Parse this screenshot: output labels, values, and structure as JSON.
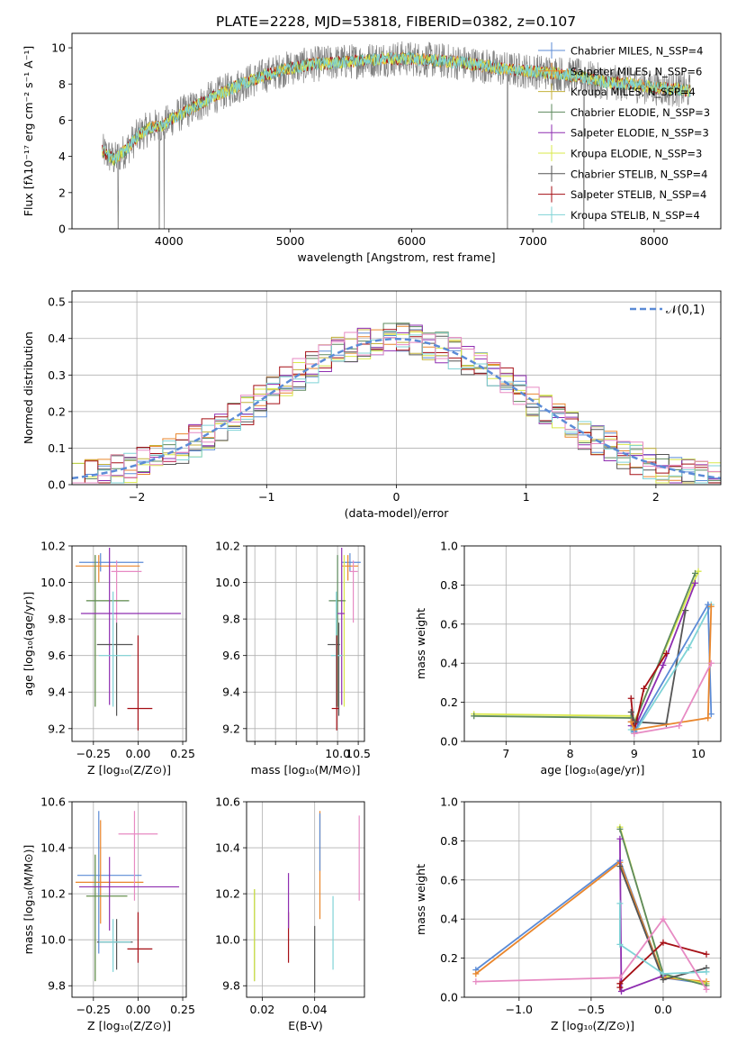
{
  "figure": {
    "title": "PLATE=2228, MJD=53818, FIBERID=0382, z=0.107"
  },
  "colors": {
    "CM": "#5b8bd6",
    "SM": "#e9862c",
    "KM": "#c4b23c",
    "CE": "#5e8a5e",
    "SE": "#8e2db0",
    "KE": "#d9e84a",
    "CS": "#555555",
    "SS": "#a50f15",
    "KS": "#7fd3d6",
    "pink": "#e78ac3",
    "gray": "#808080",
    "cyan": "#7fd3d6",
    "grid": "#b0b0b0"
  },
  "chart_data": [
    {
      "id": "spectrum",
      "type": "line",
      "title": "PLATE=2228, MJD=53818, FIBERID=0382, z=0.107",
      "xlabel": "wavelength [Angstrom, rest frame]",
      "ylabel": "Flux [fλ10⁻¹⁷ erg cm⁻² s⁻¹ A⁻¹]",
      "xlim": [
        3200,
        8550
      ],
      "ylim": [
        0,
        10.8
      ],
      "xticks": [
        4000,
        5000,
        6000,
        7000,
        8000
      ],
      "yticks": [
        0,
        2,
        4,
        6,
        8,
        10
      ],
      "grid": false,
      "legend_position": "right",
      "legend": [
        {
          "label": "Chabrier MILES, N_SSP=4",
          "color": "#5b8bd6"
        },
        {
          "label": "Salpeter MILES, N_SSP=6",
          "color": "#e9862c"
        },
        {
          "label": "Kroupa MILES, N_SSP=4",
          "color": "#c4b23c"
        },
        {
          "label": "Chabrier ELODIE, N_SSP=3",
          "color": "#5e8a5e"
        },
        {
          "label": "Salpeter ELODIE, N_SSP=3",
          "color": "#8e2db0"
        },
        {
          "label": "Kroupa ELODIE, N_SSP=3",
          "color": "#d9e84a"
        },
        {
          "label": "Chabrier STELIB, N_SSP=4",
          "color": "#555555"
        },
        {
          "label": "Salpeter STELIB, N_SSP=4",
          "color": "#a50f15"
        },
        {
          "label": "Kroupa STELIB, N_SSP=4",
          "color": "#7fd3d6"
        }
      ],
      "continuum": [
        [
          3450,
          4.3
        ],
        [
          3550,
          3.8
        ],
        [
          3650,
          4.4
        ],
        [
          3750,
          5.2
        ],
        [
          3850,
          5.6
        ],
        [
          3950,
          5.7
        ],
        [
          4050,
          6.2
        ],
        [
          4200,
          6.7
        ],
        [
          4400,
          7.4
        ],
        [
          4600,
          8.0
        ],
        [
          4800,
          8.5
        ],
        [
          5000,
          8.9
        ],
        [
          5200,
          9.1
        ],
        [
          5400,
          9.2
        ],
        [
          5600,
          9.3
        ],
        [
          5800,
          9.4
        ],
        [
          6000,
          9.4
        ],
        [
          6200,
          9.3
        ],
        [
          6400,
          9.2
        ],
        [
          6600,
          9.0
        ],
        [
          6800,
          8.8
        ],
        [
          7000,
          8.7
        ],
        [
          7200,
          8.6
        ],
        [
          7400,
          8.4
        ],
        [
          7600,
          8.1
        ],
        [
          7800,
          8.0
        ],
        [
          8000,
          7.8
        ],
        [
          8200,
          7.7
        ],
        [
          8300,
          7.6
        ]
      ],
      "noise_amplitude": 1.0,
      "dips": [
        [
          3580,
          0
        ],
        [
          3920,
          0
        ],
        [
          3960,
          0
        ],
        [
          6790,
          0
        ],
        [
          7420,
          0
        ]
      ]
    },
    {
      "id": "residuals",
      "type": "step",
      "xlabel": "(data-model)/error",
      "ylabel": "Normed distribution",
      "xlim": [
        -2.5,
        2.5
      ],
      "ylim": [
        0,
        0.53
      ],
      "xticks": [
        -2,
        -1,
        0,
        1,
        2
      ],
      "yticks": [
        0.0,
        0.1,
        0.2,
        0.3,
        0.4,
        0.5
      ],
      "grid": true,
      "legend": [
        {
          "label": "𝒩(0,1)",
          "color": "#5b8bd6",
          "style": "dashed"
        }
      ],
      "bin_width": 0.1,
      "bin_start": -2.5
    },
    {
      "id": "age_vs_Z",
      "type": "errorbar",
      "xlabel": "Z [log₁₀(Z/Z⊙)]",
      "ylabel": "age  [log₁₀(age/yr)]",
      "xlim": [
        -0.37,
        0.27
      ],
      "ylim": [
        9.13,
        10.2
      ],
      "xticks": [
        -0.25,
        0.0,
        0.25
      ],
      "xticklabels": [
        "−0.25",
        "0.00",
        "0.25"
      ],
      "yticks": [
        9.2,
        9.4,
        9.6,
        9.8,
        10.0,
        10.2
      ],
      "grid": true,
      "points": [
        {
          "x": -0.21,
          "y": 10.11,
          "xerr": [
            0.12,
            0.24
          ],
          "yerr": [
            0.05,
            0.05
          ],
          "c": "CM"
        },
        {
          "x": -0.22,
          "y": 10.09,
          "xerr": [
            0.13,
            0.23
          ],
          "yerr": [
            0.09,
            0.06
          ],
          "c": "SM"
        },
        {
          "x": -0.12,
          "y": 10.06,
          "xerr": [
            0.03,
            0.14
          ],
          "yerr": [
            0.28,
            0.06
          ],
          "c": "pink"
        },
        {
          "x": -0.24,
          "y": 9.9,
          "xerr": [
            0.05,
            0.19
          ],
          "yerr": [
            0.58,
            0.25
          ],
          "c": "KE"
        },
        {
          "x": -0.24,
          "y": 9.9,
          "xerr": [
            0.05,
            0.19
          ],
          "yerr": [
            0.58,
            0.25
          ],
          "c": "CE"
        },
        {
          "x": -0.16,
          "y": 9.83,
          "xerr": [
            0.16,
            0.4
          ],
          "yerr": [
            0.5,
            0.36
          ],
          "c": "SE"
        },
        {
          "x": -0.12,
          "y": 9.66,
          "xerr": [
            0.11,
            0.09
          ],
          "yerr": [
            0.39,
            0.12
          ],
          "c": "CS"
        },
        {
          "x": -0.14,
          "y": 9.6,
          "xerr": [
            0.08,
            0.1
          ],
          "yerr": [
            0.28,
            0.35
          ],
          "c": "KS"
        },
        {
          "x": 0.0,
          "y": 9.31,
          "xerr": [
            0.06,
            0.08
          ],
          "yerr": [
            0.12,
            0.4
          ],
          "c": "SS"
        }
      ]
    },
    {
      "id": "age_vs_mass",
      "type": "errorbar",
      "xlabel": "mass [log₁₀(M/M⊙)]",
      "ylabel": "",
      "xlim": [
        7.8,
        10.65
      ],
      "ylim": [
        9.13,
        10.2
      ],
      "xticks": [
        8.0,
        8.5,
        9.0,
        9.5,
        10.0,
        10.5
      ],
      "xticklabels": [
        "",
        "",
        "",
        "",
        "10.0",
        "10.5"
      ],
      "yticks": [
        9.2,
        9.4,
        9.6,
        9.8,
        10.0,
        10.2
      ],
      "grid": true,
      "points": [
        {
          "x": 10.3,
          "y": 10.11,
          "xerr": [
            0.19,
            0.26
          ],
          "yerr": [
            0.05,
            0.05
          ],
          "c": "CM"
        },
        {
          "x": 10.25,
          "y": 10.09,
          "xerr": [
            0.14,
            0.25
          ],
          "yerr": [
            0.08,
            0.06
          ],
          "c": "SM"
        },
        {
          "x": 10.38,
          "y": 10.06,
          "xerr": [
            0.09,
            0.11
          ],
          "yerr": [
            0.28,
            0.06
          ],
          "c": "pink"
        },
        {
          "x": 10.16,
          "y": 9.9,
          "xerr": [
            0.15,
            0.04
          ],
          "yerr": [
            0.58,
            0.25
          ],
          "c": "KE"
        },
        {
          "x": 10.0,
          "y": 9.9,
          "xerr": [
            0.21,
            0.19
          ],
          "yerr": [
            0.58,
            0.25
          ],
          "c": "CE"
        },
        {
          "x": 10.1,
          "y": 9.83,
          "xerr": [
            0.1,
            0.07
          ],
          "yerr": [
            0.5,
            0.36
          ],
          "c": "SE"
        },
        {
          "x": 10.03,
          "y": 9.66,
          "xerr": [
            0.27,
            0.03
          ],
          "yerr": [
            0.39,
            0.12
          ],
          "c": "CS"
        },
        {
          "x": 9.97,
          "y": 9.6,
          "xerr": [
            0.13,
            0.14
          ],
          "yerr": [
            0.28,
            0.35
          ],
          "c": "KS"
        },
        {
          "x": 9.98,
          "y": 9.31,
          "xerr": [
            0.12,
            0.05
          ],
          "yerr": [
            0.12,
            0.4
          ],
          "c": "SS"
        }
      ]
    },
    {
      "id": "weight_vs_age",
      "type": "line",
      "xlabel": "age  [log₁₀(age/yr)]",
      "ylabel": "mass weight",
      "xlim": [
        6.35,
        10.35
      ],
      "ylim": [
        0,
        1.0
      ],
      "xticks": [
        7,
        8,
        9,
        10
      ],
      "yticks": [
        0.0,
        0.2,
        0.4,
        0.6,
        0.8,
        1.0
      ],
      "grid": true,
      "series": [
        {
          "c": "KE",
          "x": [
            6.5,
            8.95,
            9.0,
            10.0
          ],
          "y": [
            0.14,
            0.13,
            0.1,
            0.87
          ]
        },
        {
          "c": "CE",
          "x": [
            6.5,
            8.95,
            9.0,
            9.95
          ],
          "y": [
            0.13,
            0.12,
            0.09,
            0.86
          ]
        },
        {
          "c": "SE",
          "x": [
            8.95,
            9.05,
            9.45,
            9.95
          ],
          "y": [
            0.08,
            0.1,
            0.39,
            0.81
          ]
        },
        {
          "c": "SS",
          "x": [
            8.95,
            9.0,
            9.15,
            9.5
          ],
          "y": [
            0.22,
            0.05,
            0.27,
            0.45
          ]
        },
        {
          "c": "CS",
          "x": [
            8.95,
            9.0,
            9.5,
            9.8
          ],
          "y": [
            0.15,
            0.1,
            0.09,
            0.67
          ]
        },
        {
          "c": "KS",
          "x": [
            8.95,
            9.0,
            9.85,
            10.2
          ],
          "y": [
            0.06,
            0.04,
            0.48,
            0.7
          ]
        },
        {
          "c": "CM",
          "x": [
            8.95,
            9.0,
            10.15,
            10.2
          ],
          "y": [
            0.1,
            0.05,
            0.7,
            0.14
          ]
        },
        {
          "c": "SM",
          "x": [
            8.95,
            9.0,
            10.15,
            10.2
          ],
          "y": [
            0.1,
            0.06,
            0.12,
            0.69
          ]
        },
        {
          "c": "pink",
          "x": [
            9.0,
            9.7,
            10.2
          ],
          "y": [
            0.04,
            0.08,
            0.4
          ]
        }
      ]
    },
    {
      "id": "mass_vs_Z",
      "type": "errorbar",
      "xlabel": "Z [log₁₀(Z/Z⊙)]",
      "ylabel": "mass [log₁₀(M/M⊙)]",
      "xlim": [
        -0.37,
        0.27
      ],
      "ylim": [
        9.75,
        10.6
      ],
      "xticks": [
        -0.25,
        0.0,
        0.25
      ],
      "xticklabels": [
        "−0.25",
        "0.00",
        "0.25"
      ],
      "yticks": [
        9.8,
        10.0,
        10.2,
        10.4,
        10.6
      ],
      "grid": true,
      "points": [
        {
          "x": -0.22,
          "y": 10.28,
          "xerr": [
            0.12,
            0.24
          ],
          "yerr": [
            0.34,
            0.28
          ],
          "c": "CM"
        },
        {
          "x": -0.21,
          "y": 10.25,
          "xerr": [
            0.14,
            0.24
          ],
          "yerr": [
            0.18,
            0.27
          ],
          "c": "SM"
        },
        {
          "x": -0.02,
          "y": 10.46,
          "xerr": [
            0.09,
            0.13
          ],
          "yerr": [
            0.29,
            0.1
          ],
          "c": "pink"
        },
        {
          "x": -0.24,
          "y": 10.19,
          "xerr": [
            0.05,
            0.18
          ],
          "yerr": [
            0.37,
            0.18
          ],
          "c": "KE"
        },
        {
          "x": -0.24,
          "y": 10.19,
          "xerr": [
            0.05,
            0.18
          ],
          "yerr": [
            0.37,
            0.18
          ],
          "c": "CE"
        },
        {
          "x": -0.16,
          "y": 10.23,
          "xerr": [
            0.17,
            0.39
          ],
          "yerr": [
            0.19,
            0.13
          ],
          "c": "SE"
        },
        {
          "x": -0.12,
          "y": 9.99,
          "xerr": [
            0.11,
            0.09
          ],
          "yerr": [
            0.12,
            0.1
          ],
          "c": "CS"
        },
        {
          "x": -0.14,
          "y": 9.99,
          "xerr": [
            0.08,
            0.1
          ],
          "yerr": [
            0.13,
            0.1
          ],
          "c": "KS"
        },
        {
          "x": 0.0,
          "y": 9.96,
          "xerr": [
            0.06,
            0.08
          ],
          "yerr": [
            0.06,
            0.16
          ],
          "c": "SS"
        }
      ]
    },
    {
      "id": "mass_vs_ebv",
      "type": "errorbar",
      "xlabel": "E(B-V)",
      "ylabel": "",
      "xlim": [
        0.014,
        0.059
      ],
      "ylim": [
        9.75,
        10.6
      ],
      "xticks": [
        0.02,
        0.04
      ],
      "yticks": [
        9.8,
        10.0,
        10.2,
        10.4,
        10.6
      ],
      "grid": true,
      "points": [
        {
          "x": 0.017,
          "y": 10.02,
          "yerr": [
            0.2,
            0.2
          ],
          "c": "CE"
        },
        {
          "x": 0.017,
          "y": 10.02,
          "yerr": [
            0.2,
            0.2
          ],
          "c": "KE"
        },
        {
          "x": 0.03,
          "y": 10.01,
          "yerr": [
            0.11,
            0.11
          ],
          "c": "SS"
        },
        {
          "x": 0.03,
          "y": 10.17,
          "yerr": [
            0.12,
            0.12
          ],
          "c": "SE"
        },
        {
          "x": 0.04,
          "y": 9.95,
          "yerr": [
            0.18,
            0.11
          ],
          "c": "CS"
        },
        {
          "x": 0.042,
          "y": 10.35,
          "yerr": [
            0.26,
            0.21
          ],
          "c": "SM"
        },
        {
          "x": 0.042,
          "y": 10.42,
          "yerr": [
            0.12,
            0.13
          ],
          "c": "CM"
        },
        {
          "x": 0.047,
          "y": 10.03,
          "yerr": [
            0.16,
            0.16
          ],
          "c": "KS"
        },
        {
          "x": 0.057,
          "y": 10.35,
          "yerr": [
            0.18,
            0.19
          ],
          "c": "pink"
        }
      ]
    },
    {
      "id": "weight_vs_Z",
      "type": "line",
      "xlabel": "Z [log₁₀(Z/Z⊙)]",
      "ylabel": "mass weight",
      "xlim": [
        -1.38,
        0.4
      ],
      "ylim": [
        0,
        1.0
      ],
      "xticks": [
        -1.0,
        -0.5,
        0.0
      ],
      "xticklabels": [
        "−1.0",
        "−0.5",
        "0.0"
      ],
      "yticks": [
        0.0,
        0.2,
        0.4,
        0.6,
        0.8,
        1.0
      ],
      "grid": true,
      "series": [
        {
          "c": "CM",
          "x": [
            -1.3,
            -0.3,
            0.0,
            0.3
          ],
          "y": [
            0.14,
            0.7,
            0.1,
            0.07
          ]
        },
        {
          "c": "SM",
          "x": [
            -1.3,
            -0.3,
            0.0,
            0.3
          ],
          "y": [
            0.12,
            0.69,
            0.1,
            0.08
          ]
        },
        {
          "c": "KE",
          "x": [
            -0.3,
            0.0,
            0.3
          ],
          "y": [
            0.87,
            0.11,
            0.07
          ]
        },
        {
          "c": "CE",
          "x": [
            -0.3,
            0.0,
            0.3
          ],
          "y": [
            0.86,
            0.12,
            0.06
          ]
        },
        {
          "c": "SE",
          "x": [
            -0.3,
            -0.29,
            0.0
          ],
          "y": [
            0.81,
            0.03,
            0.11
          ]
        },
        {
          "c": "SS",
          "x": [
            -0.3,
            -0.3,
            0.0,
            0.3
          ],
          "y": [
            0.05,
            0.07,
            0.28,
            0.22
          ]
        },
        {
          "c": "CS",
          "x": [
            -0.3,
            0.0,
            0.3
          ],
          "y": [
            0.67,
            0.09,
            0.15
          ]
        },
        {
          "c": "KS",
          "x": [
            -0.3,
            -0.3,
            0.0,
            0.3
          ],
          "y": [
            0.48,
            0.27,
            0.12,
            0.13
          ]
        },
        {
          "c": "pink",
          "x": [
            -1.3,
            -0.3,
            0.0,
            0.3
          ],
          "y": [
            0.08,
            0.1,
            0.4,
            0.04
          ]
        }
      ]
    }
  ]
}
